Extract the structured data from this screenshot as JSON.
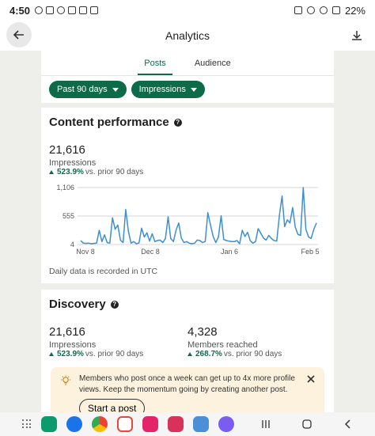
{
  "status_bar": {
    "time": "4:50",
    "battery": "22%"
  },
  "app_bar": {
    "title": "Analytics"
  },
  "tabs": [
    {
      "label": "Posts",
      "active": true
    },
    {
      "label": "Audience",
      "active": false
    }
  ],
  "filters": {
    "period": "Past 90 days",
    "metric": "Impressions"
  },
  "content_performance": {
    "title": "Content performance",
    "value": "21,616",
    "label": "Impressions",
    "delta_pct": "523.9%",
    "delta_text": "vs. prior 90 days",
    "note": "Daily data is recorded in UTC"
  },
  "chart_data": {
    "type": "line",
    "y_ticks": [
      "1,106",
      "555",
      "4"
    ],
    "ylim": [
      4,
      1106
    ],
    "x_ticks": [
      "Nov 8",
      "Dec 8",
      "Jan 6",
      "Feb 5"
    ],
    "series": [
      {
        "values": [
          80,
          30,
          25,
          30,
          20,
          25,
          30,
          280,
          60,
          190,
          40,
          30,
          520,
          300,
          380,
          90,
          40,
          680,
          260,
          30,
          60,
          20,
          35,
          320,
          150,
          230,
          70,
          210,
          60,
          80,
          90,
          40,
          120,
          540,
          120,
          60,
          280,
          420,
          130,
          40,
          60,
          30,
          20,
          30,
          90,
          80,
          40,
          60,
          620,
          380,
          160,
          40,
          150,
          560,
          100,
          80,
          70,
          60,
          60,
          80,
          20,
          280,
          160,
          240,
          80,
          30,
          60,
          310,
          220,
          130,
          90,
          180,
          120,
          80,
          70,
          560,
          940,
          350,
          480,
          420,
          720,
          340,
          200,
          180,
          1106,
          300,
          150,
          120,
          300,
          420
        ]
      }
    ],
    "accent": "#3d8fd1"
  },
  "discovery": {
    "title": "Discovery",
    "impressions": {
      "value": "21,616",
      "label": "Impressions",
      "delta_pct": "523.9%",
      "delta_text": "vs. prior 90 days"
    },
    "members": {
      "value": "4,328",
      "label": "Members reached",
      "delta_pct": "268.7%",
      "delta_text": "vs. prior 90 days"
    }
  },
  "tip": {
    "text": "Members who post once a week can get up to 4x more profile views. Keep the momentum going by creating another post.",
    "button": "Start a post"
  },
  "colors": {
    "brand_green": "#0d6b4a",
    "tip_bg": "#fdf2dd"
  }
}
